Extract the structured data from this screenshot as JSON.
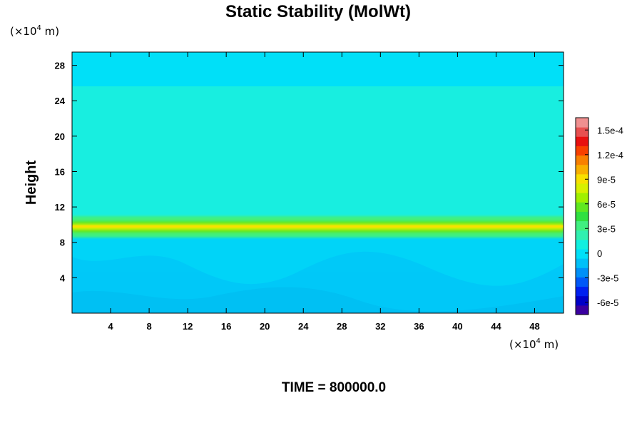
{
  "chart_data": {
    "type": "heatmap",
    "title": "Static Stability (MolWt)",
    "ylabel": "Height",
    "x_unit": {
      "prefix": "(×10",
      "exponent": "4",
      "suffix": " m)"
    },
    "y_unit": {
      "prefix": "(×10",
      "exponent": "4",
      "suffix": " m)"
    },
    "xlim": [
      0,
      51
    ],
    "ylim": [
      0,
      29.5
    ],
    "x_ticks": [
      "4",
      "8",
      "12",
      "16",
      "20",
      "24",
      "28",
      "32",
      "36",
      "40",
      "44",
      "48"
    ],
    "x_tick_values": [
      4,
      8,
      12,
      16,
      20,
      24,
      28,
      32,
      36,
      40,
      44,
      48
    ],
    "y_ticks": [
      "4",
      "8",
      "12",
      "16",
      "20",
      "24",
      "28"
    ],
    "y_tick_values": [
      4,
      8,
      12,
      16,
      20,
      24,
      28
    ],
    "colorbar": {
      "range": [
        -7.5e-05,
        0.000165
      ],
      "tick_labels": [
        "1.5e-4",
        "1.2e-4",
        "9e-5",
        "6e-5",
        "3e-5",
        "0",
        "-3e-5",
        "-6e-5"
      ],
      "tick_values": [
        0.00015,
        0.00012,
        9e-05,
        6e-05,
        3e-05,
        0,
        -3e-05,
        -6e-05
      ],
      "colors": [
        "#3a00a0",
        "#0000c8",
        "#0020f0",
        "#0058f8",
        "#0090f8",
        "#00c0f8",
        "#00e0f8",
        "#10f0e0",
        "#30f0b0",
        "#40f080",
        "#30e040",
        "#60e820",
        "#a0f000",
        "#d8f000",
        "#f8e000",
        "#f8b000",
        "#f88000",
        "#f84000",
        "#e81010",
        "#e85050",
        "#f09090"
      ]
    },
    "fields": {
      "background_value": 1e-05,
      "upper_layer_value": 1.8e-05,
      "band_center_height": 9.9,
      "band_peak_value": 0.0001
    },
    "time_label": "TIME = 800000.0"
  }
}
